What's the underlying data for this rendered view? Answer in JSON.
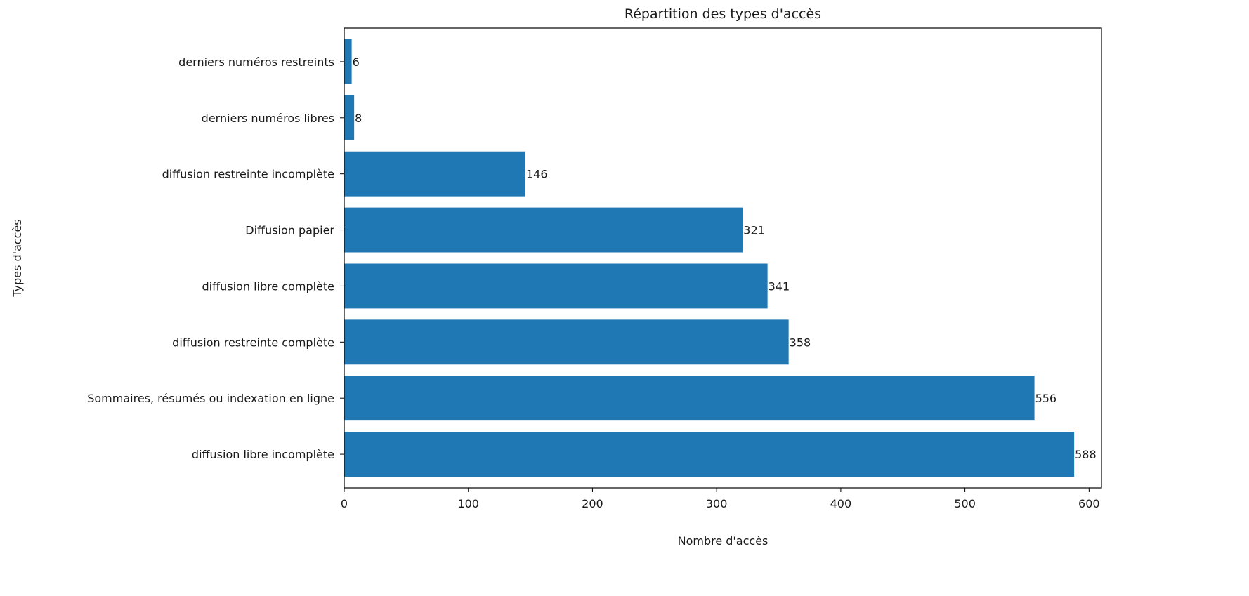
{
  "chart_data": {
    "type": "bar",
    "orientation": "horizontal",
    "title": "Répartition des types d'accès",
    "xlabel": "Nombre d'accès",
    "ylabel": "Types d'accès",
    "categories": [
      "diffusion libre incomplète",
      "Sommaires, résumés ou indexation en ligne",
      "diffusion restreinte complète",
      "diffusion libre complète",
      "Diffusion papier",
      "diffusion restreinte incomplète",
      "derniers numéros libres",
      "derniers numéros restreints"
    ],
    "values": [
      588,
      556,
      358,
      341,
      321,
      146,
      8,
      6
    ],
    "data_labels": [
      "588",
      "556",
      "358",
      "341",
      "321",
      "146",
      "8",
      "6"
    ],
    "xlim": [
      0,
      610
    ],
    "xticks": [
      0,
      100,
      200,
      300,
      400,
      500,
      600
    ],
    "xtick_labels": [
      "0",
      "100",
      "200",
      "300",
      "400",
      "500",
      "600"
    ],
    "bar_color": "#1f77b4",
    "grid": false,
    "legend": "none"
  }
}
